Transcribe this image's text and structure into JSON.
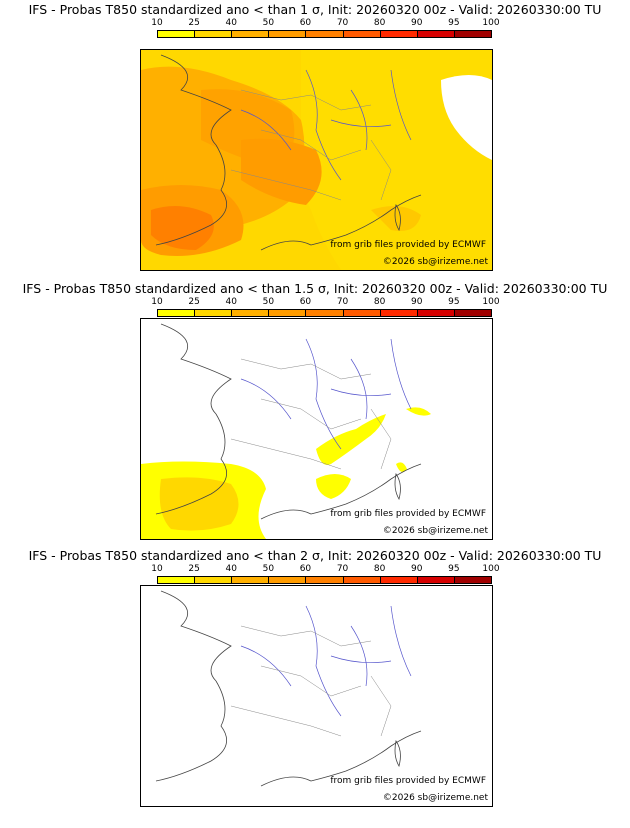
{
  "panels": [
    {
      "title": "IFS - Probas T850  standardized ano < than 1 σ, Init: 20260320 00z - Valid: 20260330:00 TU",
      "credit_source": "from grib files provided by ECMWF",
      "credit_copyright": "©2026 sb@irizeme.net"
    },
    {
      "title": "IFS - Probas T850  standardized ano < than 1.5 σ, Init: 20260320 00z - Valid: 20260330:00 TU",
      "credit_source": "from grib files provided by ECMWF",
      "credit_copyright": "©2026 sb@irizeme.net"
    },
    {
      "title": "IFS - Probas T850  standardized ano < than 2 σ, Init: 20260320 00z - Valid: 20260330:00 TU",
      "credit_source": "from grib files provided by ECMWF",
      "credit_copyright": "©2026 sb@irizeme.net"
    }
  ],
  "colorbar": {
    "labels": [
      "10",
      "25",
      "40",
      "50",
      "60",
      "70",
      "80",
      "90",
      "95",
      "100"
    ],
    "colors": [
      "#ffff00",
      "#ffd800",
      "#ffb000",
      "#ff9c00",
      "#ff8000",
      "#ff5a00",
      "#ff2a00",
      "#d60000",
      "#a00000",
      "#5c0000"
    ]
  }
}
